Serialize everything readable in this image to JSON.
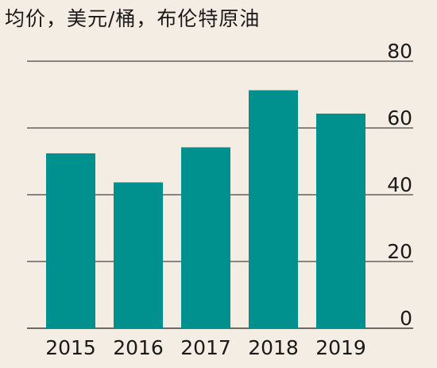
{
  "chart_data": {
    "type": "bar",
    "title": "均价，美元/桶，布伦特原油",
    "xlabel": "",
    "ylabel": "",
    "categories": [
      "2015",
      "2016",
      "2017",
      "2018",
      "2019"
    ],
    "values": [
      52.4,
      43.7,
      54.2,
      71.3,
      64.3
    ],
    "ylim": [
      0,
      80
    ],
    "yticks": [
      0,
      20,
      40,
      60,
      80
    ],
    "grid": true,
    "bar_color": "#00918f"
  }
}
